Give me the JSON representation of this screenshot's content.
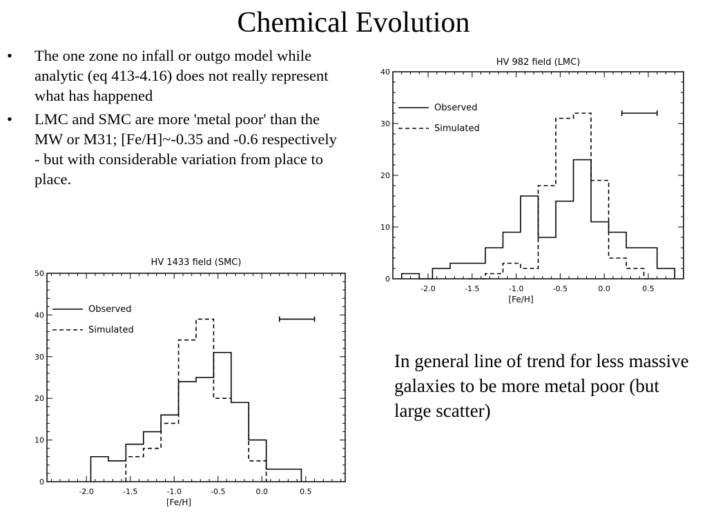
{
  "slide": {
    "title": "Chemical Evolution",
    "bullets": [
      "The one zone no infall or outgo model while analytic (eq 413-4.16) does not really represent what has happened",
      "LMC and SMC are more 'metal poor' than the MW or M31; [Fe/H]~-0.35 and -0.6 respectively - but with considerable variation from place to place."
    ],
    "bullet_glyph": "•",
    "side_text": "In general line of trend for less massive galaxies to be more metal poor (but large scatter)"
  },
  "chart_data": [
    {
      "id": "lmc",
      "type": "step-histogram",
      "title": "HV 982 field (LMC)",
      "xlabel": "[Fe/H]",
      "ylabel": "",
      "xlim": [
        -2.4,
        0.9
      ],
      "ylim": [
        0,
        40
      ],
      "xticks": [
        -2.0,
        -1.5,
        -1.0,
        -0.5,
        0.0,
        0.5
      ],
      "xtick_labels": [
        "-2.0",
        "-1.5",
        "-1.0",
        "-0.5",
        "0.0",
        "0.5"
      ],
      "yticks": [
        0,
        10,
        20,
        30,
        40
      ],
      "ytick_labels": [
        "0",
        "10",
        "20",
        "30",
        "40"
      ],
      "legend": {
        "position": "top-left",
        "entries": [
          "Observed",
          "Simulated"
        ]
      },
      "errorbar": {
        "x": [
          0.2,
          0.6
        ],
        "y": 32
      },
      "series": [
        {
          "name": "Observed",
          "style": "solid",
          "edges": [
            -2.3,
            -2.1,
            -1.95,
            -1.75,
            -1.55,
            -1.35,
            -1.15,
            -0.95,
            -0.75,
            -0.55,
            -0.35,
            -0.15,
            0.05,
            0.25,
            0.6,
            0.8
          ],
          "counts": [
            1,
            0,
            2,
            3,
            3,
            6,
            9,
            16,
            8,
            15,
            23,
            11,
            9,
            6,
            2
          ]
        },
        {
          "name": "Simulated",
          "style": "dashed",
          "edges": [
            -1.55,
            -1.35,
            -1.15,
            -0.95,
            -0.75,
            -0.55,
            -0.35,
            -0.15,
            0.05,
            0.25,
            0.45,
            0.6
          ],
          "counts": [
            0,
            1,
            3,
            2,
            18,
            31,
            32,
            19,
            4,
            2,
            0
          ]
        }
      ]
    },
    {
      "id": "smc",
      "type": "step-histogram",
      "title": "HV 1433 field (SMC)",
      "xlabel": "[Fe/H]",
      "ylabel": "",
      "xlim": [
        -2.45,
        0.95
      ],
      "ylim": [
        0,
        50
      ],
      "xticks": [
        -2.0,
        -1.5,
        -1.0,
        -0.5,
        0.0,
        0.5
      ],
      "xtick_labels": [
        "-2.0",
        "-1.5",
        "-1.0",
        "-0.5",
        "0.0",
        "0.5"
      ],
      "yticks": [
        0,
        10,
        20,
        30,
        40,
        50
      ],
      "ytick_labels": [
        "0",
        "10",
        "20",
        "30",
        "40",
        "50"
      ],
      "legend": {
        "position": "top-left",
        "entries": [
          "Observed",
          "Simulated"
        ]
      },
      "errorbar": {
        "x": [
          0.2,
          0.6
        ],
        "y": 39
      },
      "series": [
        {
          "name": "Observed",
          "style": "solid",
          "edges": [
            -1.95,
            -1.75,
            -1.55,
            -1.35,
            -1.15,
            -0.95,
            -0.75,
            -0.55,
            -0.35,
            -0.15,
            0.05,
            0.25,
            0.45
          ],
          "counts": [
            6,
            5,
            9,
            12,
            16,
            24,
            25,
            31,
            19,
            10,
            3,
            3
          ]
        },
        {
          "name": "Simulated",
          "style": "dashed",
          "edges": [
            -1.55,
            -1.35,
            -1.15,
            -0.95,
            -0.75,
            -0.55,
            -0.35,
            -0.15,
            0.05
          ],
          "counts": [
            6,
            8,
            14,
            34,
            39,
            20,
            19,
            5
          ]
        }
      ]
    }
  ]
}
